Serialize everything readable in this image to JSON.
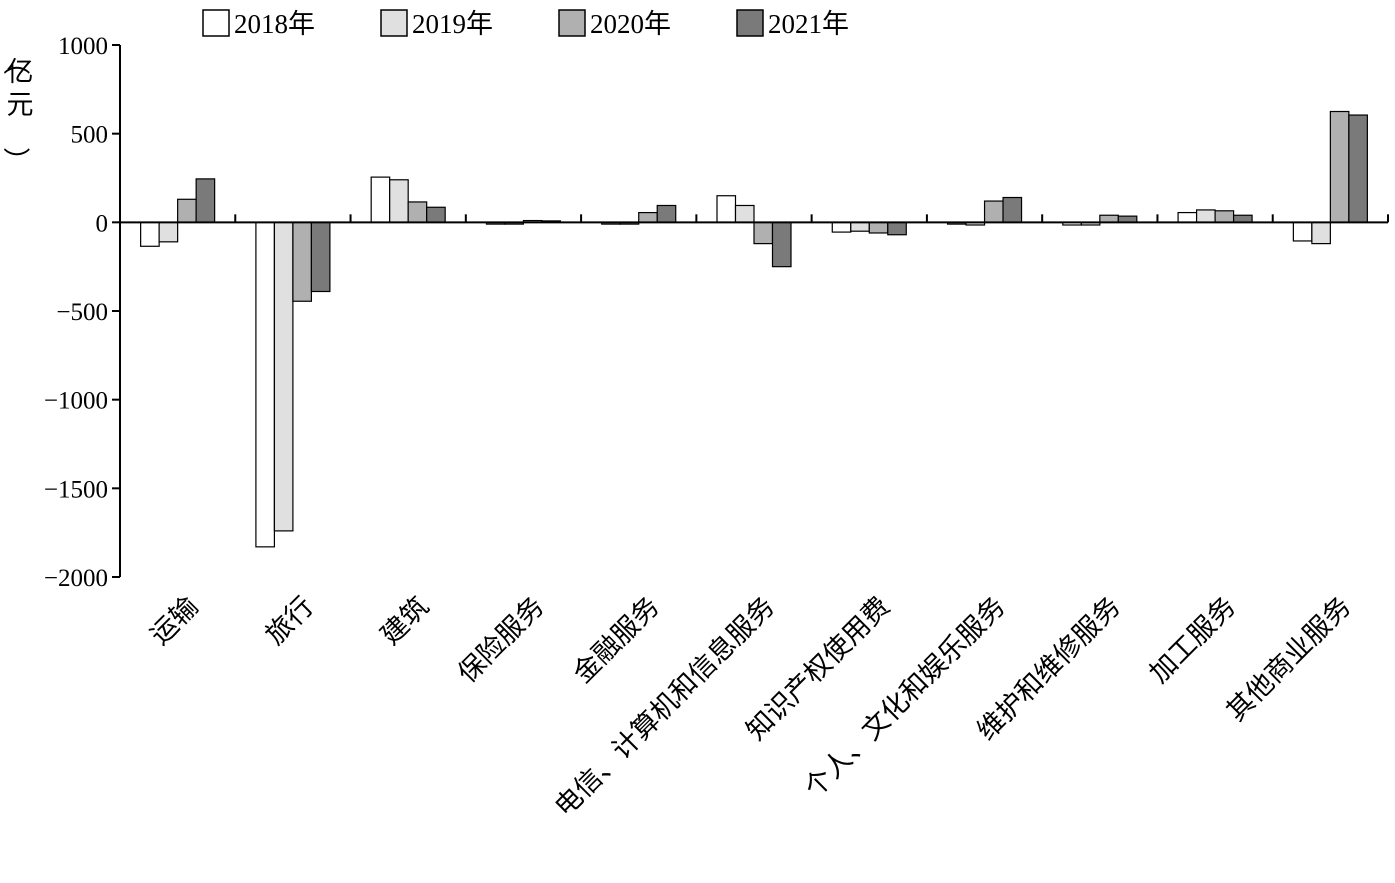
{
  "chart_data": {
    "type": "bar",
    "ylabel": "（亿元）",
    "ylim": [
      -2000,
      1000
    ],
    "yticks": [
      1000,
      500,
      0,
      -500,
      -1000,
      -1500,
      -2000
    ],
    "ytick_labels": [
      "1000",
      "500",
      "0",
      "−500",
      "−1000",
      "−1500",
      "−2000"
    ],
    "legend_position": "top",
    "grid": false,
    "categories": [
      "运输",
      "旅行",
      "建筑",
      "保险服务",
      "金融服务",
      "电信、计算机和信息服务",
      "知识产权使用费",
      "个人、文化和娱乐服务",
      "维护和维修服务",
      "加工服务",
      "其他商业服务"
    ],
    "series": [
      {
        "name": "2018年",
        "color": "#ffffff",
        "values": [
          -135,
          -1830,
          255,
          -10,
          -10,
          150,
          -55,
          -10,
          -15,
          55,
          -105
        ]
      },
      {
        "name": "2019年",
        "color": "#e0e0e0",
        "values": [
          -110,
          -1740,
          240,
          -10,
          -10,
          95,
          -50,
          -15,
          -15,
          70,
          -120
        ]
      },
      {
        "name": "2020年",
        "color": "#b0b0b0",
        "values": [
          130,
          -445,
          115,
          10,
          55,
          -120,
          -60,
          120,
          40,
          65,
          625
        ]
      },
      {
        "name": "2021年",
        "color": "#7a7a7a",
        "values": [
          245,
          -390,
          85,
          8,
          95,
          -250,
          -70,
          140,
          35,
          40,
          605
        ]
      }
    ]
  }
}
